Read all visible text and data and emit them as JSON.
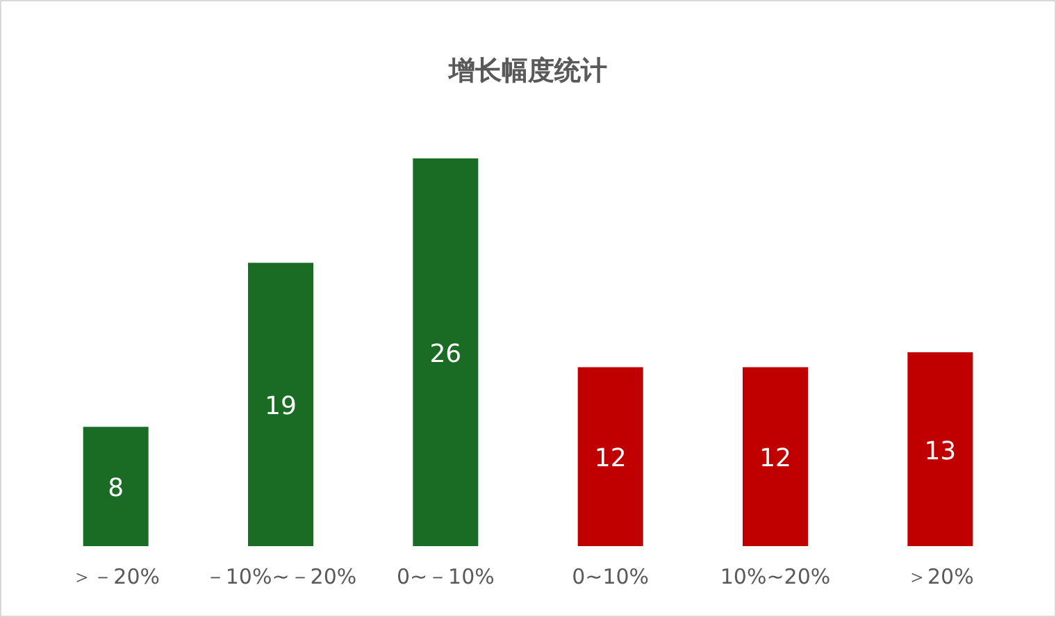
{
  "chart_data": {
    "type": "bar",
    "title": "增长幅度统计",
    "categories": [
      "＞－20%",
      "－10%~－20%",
      "0~－10%",
      "0~10%",
      "10%~20%",
      "＞20%"
    ],
    "values": [
      8,
      19,
      26,
      12,
      12,
      13
    ],
    "colors": [
      "#1a6b24",
      "#1a6b24",
      "#1a6b24",
      "#c00000",
      "#c00000",
      "#c00000"
    ],
    "data_labels": true
  }
}
